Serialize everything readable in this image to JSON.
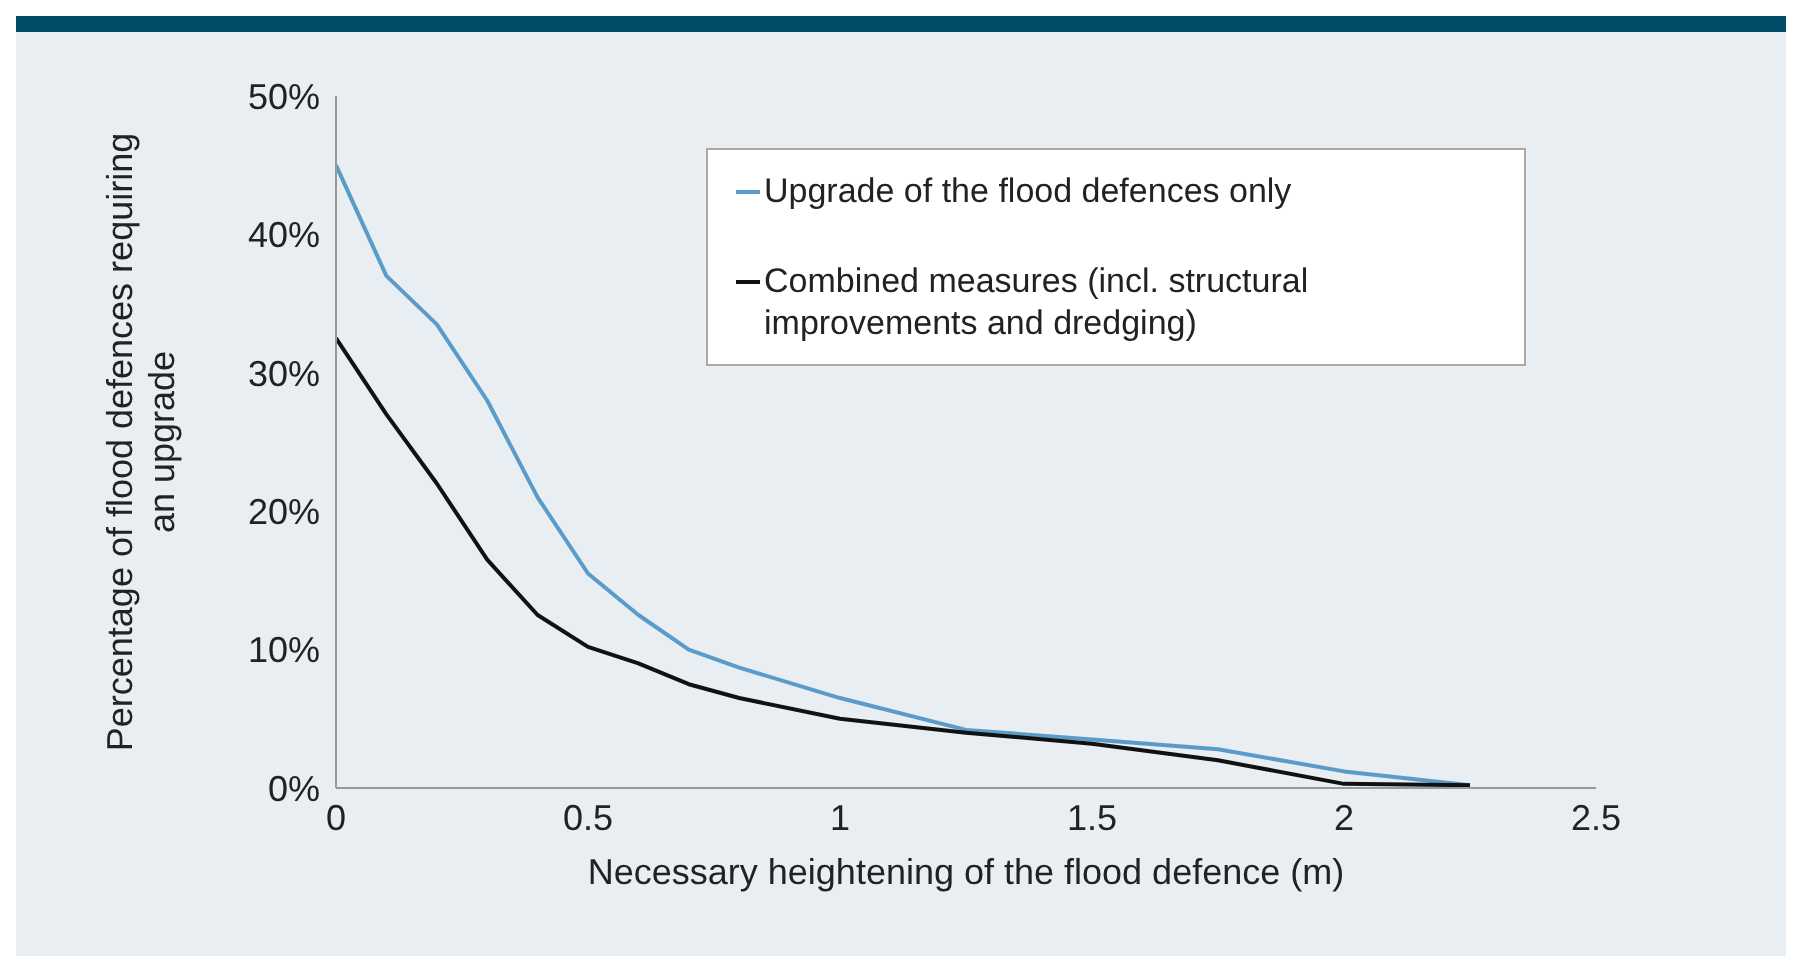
{
  "chart_data": {
    "type": "line",
    "xlabel": "Necessary heightening of the flood defence (m)",
    "ylabel": "Percentage of flood defences requiring an upgrade",
    "xlim": [
      0,
      2.5
    ],
    "xticks": [
      0,
      0.5,
      1,
      1.5,
      2,
      2.5
    ],
    "ylim": [
      0,
      50
    ],
    "yticks": [
      {
        "value": 0,
        "label": "0%"
      },
      {
        "value": 10,
        "label": "10%"
      },
      {
        "value": 20,
        "label": "20%"
      },
      {
        "value": 30,
        "label": "30%"
      },
      {
        "value": 40,
        "label": "40%"
      },
      {
        "value": 50,
        "label": "50%"
      }
    ],
    "grid": false,
    "legend": "top right",
    "marker": "none",
    "line_style": "solid",
    "x": [
      0,
      0.1,
      0.2,
      0.3,
      0.4,
      0.5,
      0.6,
      0.7,
      0.8,
      1,
      1.25,
      1.5,
      1.75,
      2,
      2.25
    ],
    "series": [
      {
        "name": "Upgrade of the flood defences only",
        "color": "#5b9bc9",
        "values": [
          45,
          37,
          33.5,
          28,
          21,
          15.5,
          12.5,
          10,
          8.7,
          6.5,
          4.2,
          3.5,
          2.8,
          1.2,
          0.2
        ]
      },
      {
        "name": "Combined measures (incl. structural improvements and dredging)",
        "color": "#111111",
        "values": [
          32.5,
          27,
          22,
          16.5,
          12.5,
          10.2,
          9,
          7.5,
          6.5,
          5,
          4,
          3.2,
          2,
          0.3,
          0.2
        ]
      }
    ]
  }
}
